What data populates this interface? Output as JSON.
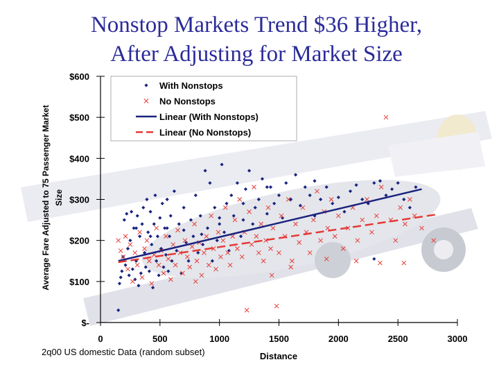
{
  "slide": {
    "title_line1": "Nonstop Markets Trend $36 Higher,",
    "title_line2": "After Adjusting for Market Size",
    "footnote": "2q00 US domestic Data (random subset)"
  },
  "colors": {
    "with_nonstops": "#1a237e",
    "no_nonstops": "#e53935",
    "trend_with": "#1a237e",
    "trend_no": "#e53935",
    "title": "#2b2b9a"
  },
  "chart_data": {
    "type": "scatter",
    "title": "",
    "xlabel": "Distance",
    "ylabel_line1": "Average Fare Adjusted to 75 Passenger Market",
    "ylabel_line2": "Size",
    "xlim": [
      0,
      3000
    ],
    "ylim": [
      0,
      600
    ],
    "x_ticks": [
      0,
      500,
      1000,
      1500,
      2000,
      2500,
      3000
    ],
    "x_tick_labels": [
      "0",
      "500",
      "1000",
      "1500",
      "2000",
      "2500",
      "3000"
    ],
    "y_ticks": [
      0,
      100,
      200,
      300,
      400,
      500,
      600
    ],
    "y_tick_labels": [
      "$-",
      "$100",
      "$200",
      "$300",
      "$400",
      "$500",
      "$600"
    ],
    "grid": false,
    "legend_position": "top-left",
    "legend": [
      {
        "label": "With Nonstops",
        "kind": "marker-diamond"
      },
      {
        "label": "No Nonstops",
        "kind": "marker-x"
      },
      {
        "label": "Linear (With Nonstops)",
        "kind": "line-solid"
      },
      {
        "label": "Linear (No Nonstops)",
        "kind": "line-dashed"
      }
    ],
    "series": [
      {
        "name": "With Nonstops",
        "marker": "diamond",
        "points": [
          [
            150,
            30
          ],
          [
            160,
            95
          ],
          [
            170,
            110
          ],
          [
            180,
            125
          ],
          [
            190,
            160
          ],
          [
            200,
            250
          ],
          [
            210,
            140
          ],
          [
            220,
            265
          ],
          [
            230,
            180
          ],
          [
            240,
            115
          ],
          [
            250,
            200
          ],
          [
            260,
            270
          ],
          [
            270,
            130
          ],
          [
            280,
            230
          ],
          [
            290,
            105
          ],
          [
            300,
            150
          ],
          [
            310,
            260
          ],
          [
            320,
            90
          ],
          [
            330,
            210
          ],
          [
            340,
            120
          ],
          [
            350,
            240
          ],
          [
            360,
            280
          ],
          [
            370,
            170
          ],
          [
            380,
            135
          ],
          [
            390,
            300
          ],
          [
            400,
            220
          ],
          [
            410,
            125
          ],
          [
            420,
            270
          ],
          [
            430,
            190
          ],
          [
            440,
            85
          ],
          [
            450,
            240
          ],
          [
            460,
            310
          ],
          [
            470,
            150
          ],
          [
            480,
            210
          ],
          [
            490,
            115
          ],
          [
            500,
            255
          ],
          [
            510,
            180
          ],
          [
            520,
            290
          ],
          [
            530,
            135
          ],
          [
            540,
            230
          ],
          [
            550,
            165
          ],
          [
            560,
            300
          ],
          [
            570,
            125
          ],
          [
            580,
            210
          ],
          [
            590,
            260
          ],
          [
            600,
            150
          ],
          [
            620,
            320
          ],
          [
            640,
            175
          ],
          [
            660,
            240
          ],
          [
            680,
            120
          ],
          [
            700,
            280
          ],
          [
            720,
            195
          ],
          [
            740,
            150
          ],
          [
            760,
            250
          ],
          [
            780,
            210
          ],
          [
            800,
            310
          ],
          [
            820,
            170
          ],
          [
            840,
            260
          ],
          [
            860,
            190
          ],
          [
            880,
            370
          ],
          [
            900,
            230
          ],
          [
            920,
            340
          ],
          [
            940,
            150
          ],
          [
            960,
            280
          ],
          [
            980,
            200
          ],
          [
            1000,
            255
          ],
          [
            1020,
            385
          ],
          [
            1040,
            220
          ],
          [
            1060,
            290
          ],
          [
            1080,
            175
          ],
          [
            1100,
            310
          ],
          [
            1120,
            260
          ],
          [
            1150,
            340
          ],
          [
            1180,
            210
          ],
          [
            1200,
            290
          ],
          [
            1220,
            325
          ],
          [
            1250,
            370
          ],
          [
            1280,
            240
          ],
          [
            1300,
            280
          ],
          [
            1330,
            300
          ],
          [
            1360,
            350
          ],
          [
            1400,
            265
          ],
          [
            1430,
            330
          ],
          [
            1460,
            290
          ],
          [
            1500,
            310
          ],
          [
            1530,
            255
          ],
          [
            1560,
            340
          ],
          [
            1600,
            300
          ],
          [
            1640,
            360
          ],
          [
            1680,
            285
          ],
          [
            1720,
            330
          ],
          [
            1760,
            310
          ],
          [
            1800,
            345
          ],
          [
            1850,
            300
          ],
          [
            1900,
            330
          ],
          [
            1950,
            290
          ],
          [
            2000,
            305
          ],
          [
            2050,
            270
          ],
          [
            2100,
            320
          ],
          [
            2150,
            335
          ],
          [
            2200,
            300
          ],
          [
            2250,
            290
          ],
          [
            2300,
            340
          ],
          [
            2350,
            345
          ],
          [
            2400,
            310
          ],
          [
            2450,
            325
          ],
          [
            2500,
            340
          ],
          [
            2550,
            300
          ],
          [
            2600,
            280
          ],
          [
            2650,
            330
          ],
          [
            300,
            230
          ],
          [
            420,
            210
          ],
          [
            560,
            230
          ],
          [
            700,
            225
          ],
          [
            850,
            215
          ],
          [
            1000,
            240
          ],
          [
            1200,
            250
          ],
          [
            1400,
            330
          ],
          [
            1800,
            260
          ],
          [
            2300,
            155
          ]
        ]
      },
      {
        "name": "No Nonstops",
        "marker": "x",
        "points": [
          [
            150,
            200
          ],
          [
            170,
            175
          ],
          [
            190,
            160
          ],
          [
            210,
            210
          ],
          [
            230,
            130
          ],
          [
            250,
            190
          ],
          [
            270,
            100
          ],
          [
            290,
            170
          ],
          [
            310,
            140
          ],
          [
            330,
            220
          ],
          [
            350,
            110
          ],
          [
            370,
            180
          ],
          [
            390,
            200
          ],
          [
            410,
            150
          ],
          [
            430,
            95
          ],
          [
            450,
            165
          ],
          [
            470,
            230
          ],
          [
            490,
            140
          ],
          [
            510,
            175
          ],
          [
            530,
            120
          ],
          [
            550,
            210
          ],
          [
            570,
            155
          ],
          [
            590,
            105
          ],
          [
            610,
            190
          ],
          [
            630,
            140
          ],
          [
            650,
            225
          ],
          [
            670,
            170
          ],
          [
            690,
            120
          ],
          [
            710,
            200
          ],
          [
            730,
            160
          ],
          [
            750,
            135
          ],
          [
            770,
            185
          ],
          [
            790,
            240
          ],
          [
            810,
            150
          ],
          [
            830,
            195
          ],
          [
            850,
            115
          ],
          [
            870,
            170
          ],
          [
            890,
            210
          ],
          [
            910,
            140
          ],
          [
            930,
            260
          ],
          [
            950,
            180
          ],
          [
            970,
            130
          ],
          [
            990,
            220
          ],
          [
            1010,
            160
          ],
          [
            1030,
            200
          ],
          [
            1050,
            280
          ],
          [
            1070,
            170
          ],
          [
            1090,
            140
          ],
          [
            1110,
            210
          ],
          [
            1130,
            250
          ],
          [
            1150,
            180
          ],
          [
            1170,
            300
          ],
          [
            1190,
            160
          ],
          [
            1210,
            220
          ],
          [
            1230,
            30
          ],
          [
            1250,
            270
          ],
          [
            1270,
            190
          ],
          [
            1290,
            330
          ],
          [
            1310,
            210
          ],
          [
            1330,
            170
          ],
          [
            1350,
            240
          ],
          [
            1370,
            150
          ],
          [
            1390,
            200
          ],
          [
            1410,
            280
          ],
          [
            1430,
            180
          ],
          [
            1450,
            230
          ],
          [
            1480,
            40
          ],
          [
            1500,
            170
          ],
          [
            1520,
            260
          ],
          [
            1550,
            210
          ],
          [
            1580,
            300
          ],
          [
            1610,
            150
          ],
          [
            1640,
            240
          ],
          [
            1670,
            195
          ],
          [
            1700,
            280
          ],
          [
            1730,
            220
          ],
          [
            1760,
            170
          ],
          [
            1790,
            250
          ],
          [
            1820,
            320
          ],
          [
            1850,
            200
          ],
          [
            1880,
            270
          ],
          [
            1910,
            230
          ],
          [
            1940,
            300
          ],
          [
            1970,
            210
          ],
          [
            2000,
            260
          ],
          [
            2040,
            180
          ],
          [
            2080,
            230
          ],
          [
            2120,
            280
          ],
          [
            2160,
            200
          ],
          [
            2200,
            250
          ],
          [
            2240,
            300
          ],
          [
            2280,
            220
          ],
          [
            2320,
            260
          ],
          [
            2360,
            330
          ],
          [
            2400,
            500
          ],
          [
            2440,
            250
          ],
          [
            2480,
            200
          ],
          [
            2520,
            280
          ],
          [
            2560,
            240
          ],
          [
            2600,
            300
          ],
          [
            2640,
            260
          ],
          [
            2700,
            230
          ],
          [
            2800,
            200
          ],
          [
            1440,
            115
          ],
          [
            1600,
            135
          ],
          [
            1900,
            155
          ],
          [
            2150,
            150
          ],
          [
            2350,
            145
          ],
          [
            2550,
            145
          ],
          [
            800,
            100
          ]
        ]
      }
    ],
    "trend_lines": [
      {
        "name": "Linear (With Nonstops)",
        "x": [
          150,
          2700
        ],
        "y": [
          150,
          325
        ],
        "style": "solid"
      },
      {
        "name": "Linear (No Nonstops)",
        "x": [
          150,
          2820
        ],
        "y": [
          147,
          263
        ],
        "style": "dashed"
      }
    ]
  }
}
